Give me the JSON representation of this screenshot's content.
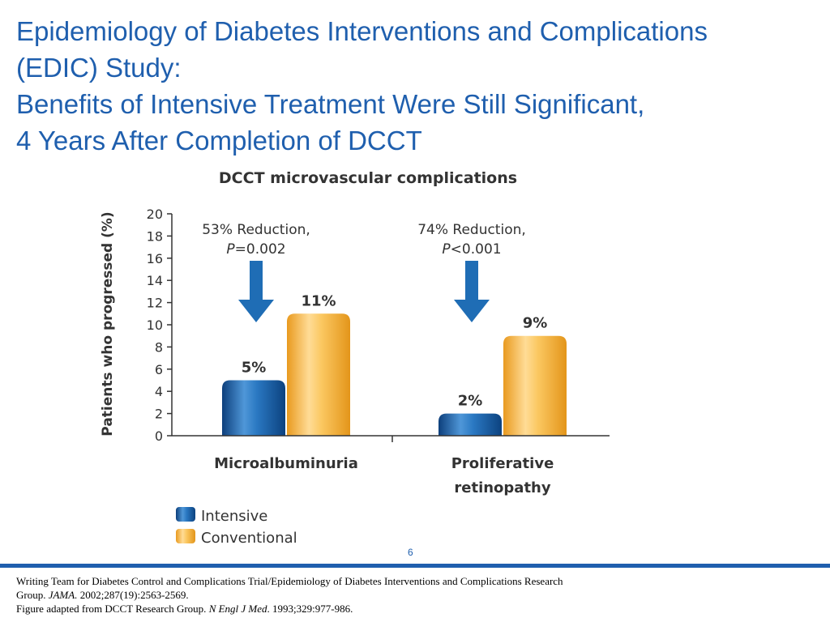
{
  "slide": {
    "title_lines": [
      "Epidemiology of Diabetes Interventions and Complications",
      "(EDIC) Study:",
      "Benefits of Intensive Treatment Were Still Significant,",
      "4 Years After Completion of DCCT"
    ],
    "page_number": "6",
    "citation": {
      "line1": "Writing Team for Diabetes Control and Complications Trial/Epidemiology of Diabetes Interventions and Complications Research",
      "line2_pre": "Group. ",
      "line2_journal": "JAMA.",
      "line2_post": " 2002;287(19):2563-2569.",
      "line3_pre": "Figure adapted from DCCT Research Group. ",
      "line3_journal": "N Engl J Med",
      "line3_post": ". 1993;329:977-986."
    }
  },
  "chart_data": {
    "type": "bar",
    "title": "DCCT microvascular complications",
    "ylabel": "Patients who progressed (%)",
    "xlabel": "",
    "ylim": [
      0,
      20
    ],
    "yticks": [
      0,
      2,
      4,
      6,
      8,
      10,
      12,
      14,
      16,
      18,
      20
    ],
    "categories": [
      {
        "lines": [
          "Microalbuminuria"
        ]
      },
      {
        "lines": [
          "Proliferative",
          "retinopathy"
        ]
      }
    ],
    "series": [
      {
        "name": "Intensive",
        "color": "#1f6db5",
        "values": [
          5,
          2
        ],
        "labels": [
          "5%",
          "2%"
        ]
      },
      {
        "name": "Conventional",
        "color": "#f5b642",
        "values": [
          11,
          9
        ],
        "labels": [
          "11%",
          "9%"
        ]
      }
    ],
    "annotations": [
      {
        "line1": "53% Reduction,",
        "p_letter": "P",
        "p_rest": "=0.002"
      },
      {
        "line1": "74% Reduction,",
        "p_letter": "P",
        "p_rest": "<0.001"
      }
    ],
    "legend_position": "bottom-left",
    "grid": false
  }
}
